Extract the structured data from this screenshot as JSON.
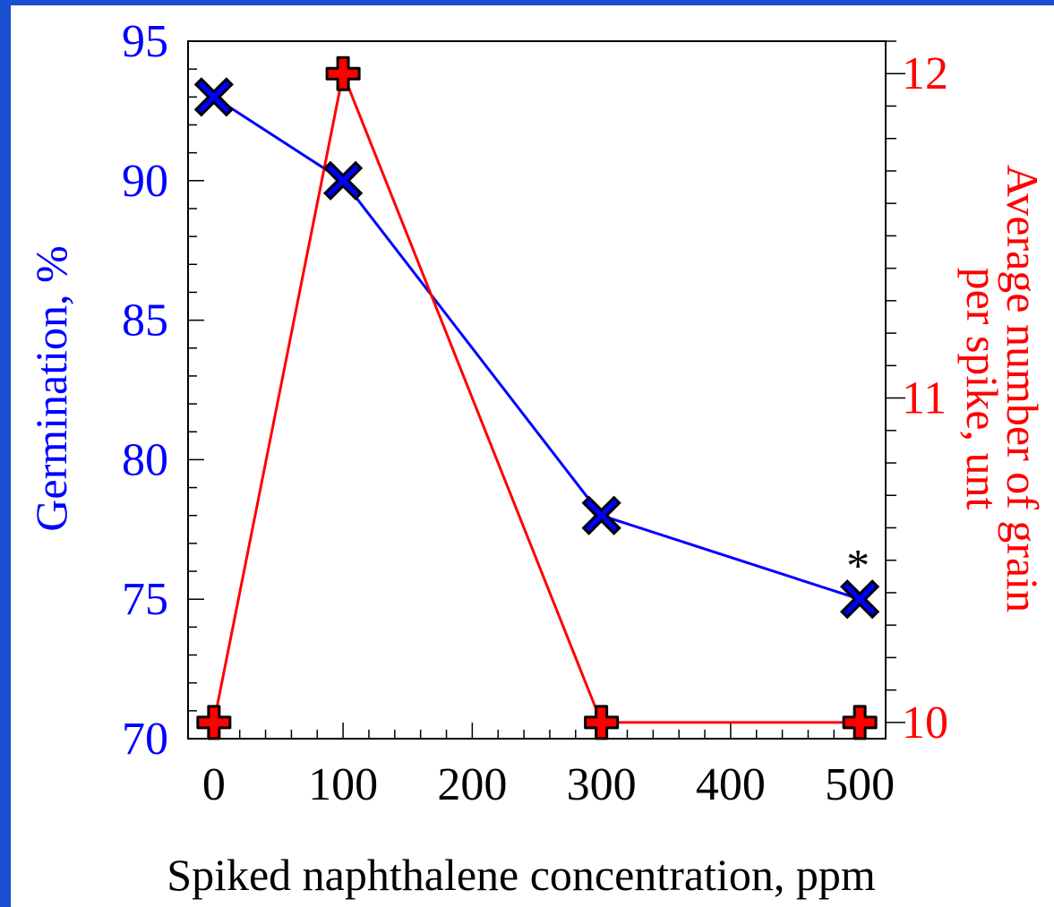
{
  "chart_data": {
    "type": "line",
    "title": "",
    "xlabel": "Spiked naphthalene concentration, ppm",
    "ylabel_left": "Germination, %",
    "ylabel_right_lines": [
      "Average number of grain",
      "per spike, unt"
    ],
    "x_ticks": [
      0,
      100,
      200,
      300,
      400,
      500
    ],
    "xlim": [
      -20,
      520
    ],
    "ylim_left": [
      70,
      95
    ],
    "y_ticks_left": [
      70,
      75,
      80,
      85,
      90,
      95
    ],
    "ylim_right": [
      9.95,
      12.1
    ],
    "y_ticks_right": [
      10,
      11,
      12
    ],
    "grid": false,
    "series": [
      {
        "axis": "left",
        "marker": "x",
        "color": "#0000ff",
        "x": [
          0,
          100,
          300,
          500
        ],
        "y": [
          93,
          90,
          78,
          75
        ]
      },
      {
        "axis": "right",
        "marker": "plus",
        "color": "#ff0000",
        "x": [
          0,
          100,
          300,
          500
        ],
        "y": [
          10,
          12,
          10,
          10
        ]
      }
    ],
    "annotations": [
      {
        "text": "*",
        "x": 500,
        "y": 75,
        "axis": "left"
      }
    ]
  }
}
